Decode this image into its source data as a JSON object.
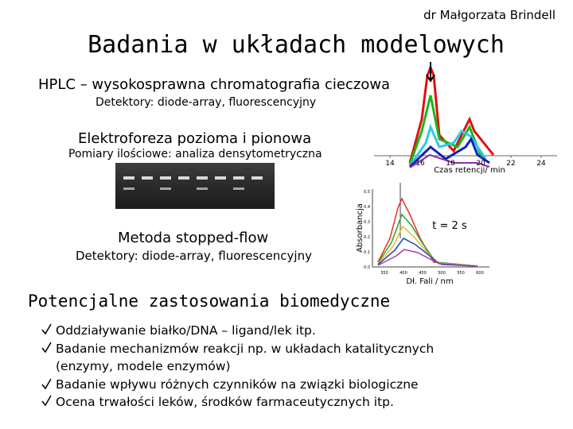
{
  "header": {
    "author": "dr Małgorzata Brindell",
    "title": "Badania w układach modelowych"
  },
  "sections": [
    {
      "heading": "HPLC – wysokosprawna chromatografia cieczowa",
      "detail": "Detektory: diode-array, fluorescencyjny"
    },
    {
      "heading": "Elektroforeza pozioma i pionowa",
      "detail": "Pomiary ilościowe: analiza densytometryczna"
    },
    {
      "heading": "Metoda stopped-flow",
      "detail": "Detektory: diode-array, fluorescencyjny"
    }
  ],
  "hplc_figure": {
    "xlabel": "Czas retencji/ min",
    "xticks": [
      "14",
      "16",
      "18",
      "20",
      "22",
      "24"
    ]
  },
  "spectra_figure": {
    "ylabel": "Absorbancja",
    "xlabel": "Dł. Fali / nm",
    "annotation": "t = 2 s",
    "yticks": [
      "0.5",
      "0.4",
      "0.3",
      "0.2",
      "0.1",
      "0.0"
    ],
    "xticks": [
      "350",
      "400",
      "450",
      "500",
      "550",
      "600"
    ]
  },
  "applications": {
    "heading": "Potencjalne zastosowania biomedyczne",
    "items": [
      "Oddziaływanie białko/DNA – ligand/lek itp.",
      "Badanie mechanizmów reakcji np. w układach katalitycznych",
      "(enzymy, modele enzymów)",
      "Badanie wpływu różnych czynników na związki biologiczne",
      "Ocena trwałości leków, środków farmaceutycznych itp."
    ]
  }
}
